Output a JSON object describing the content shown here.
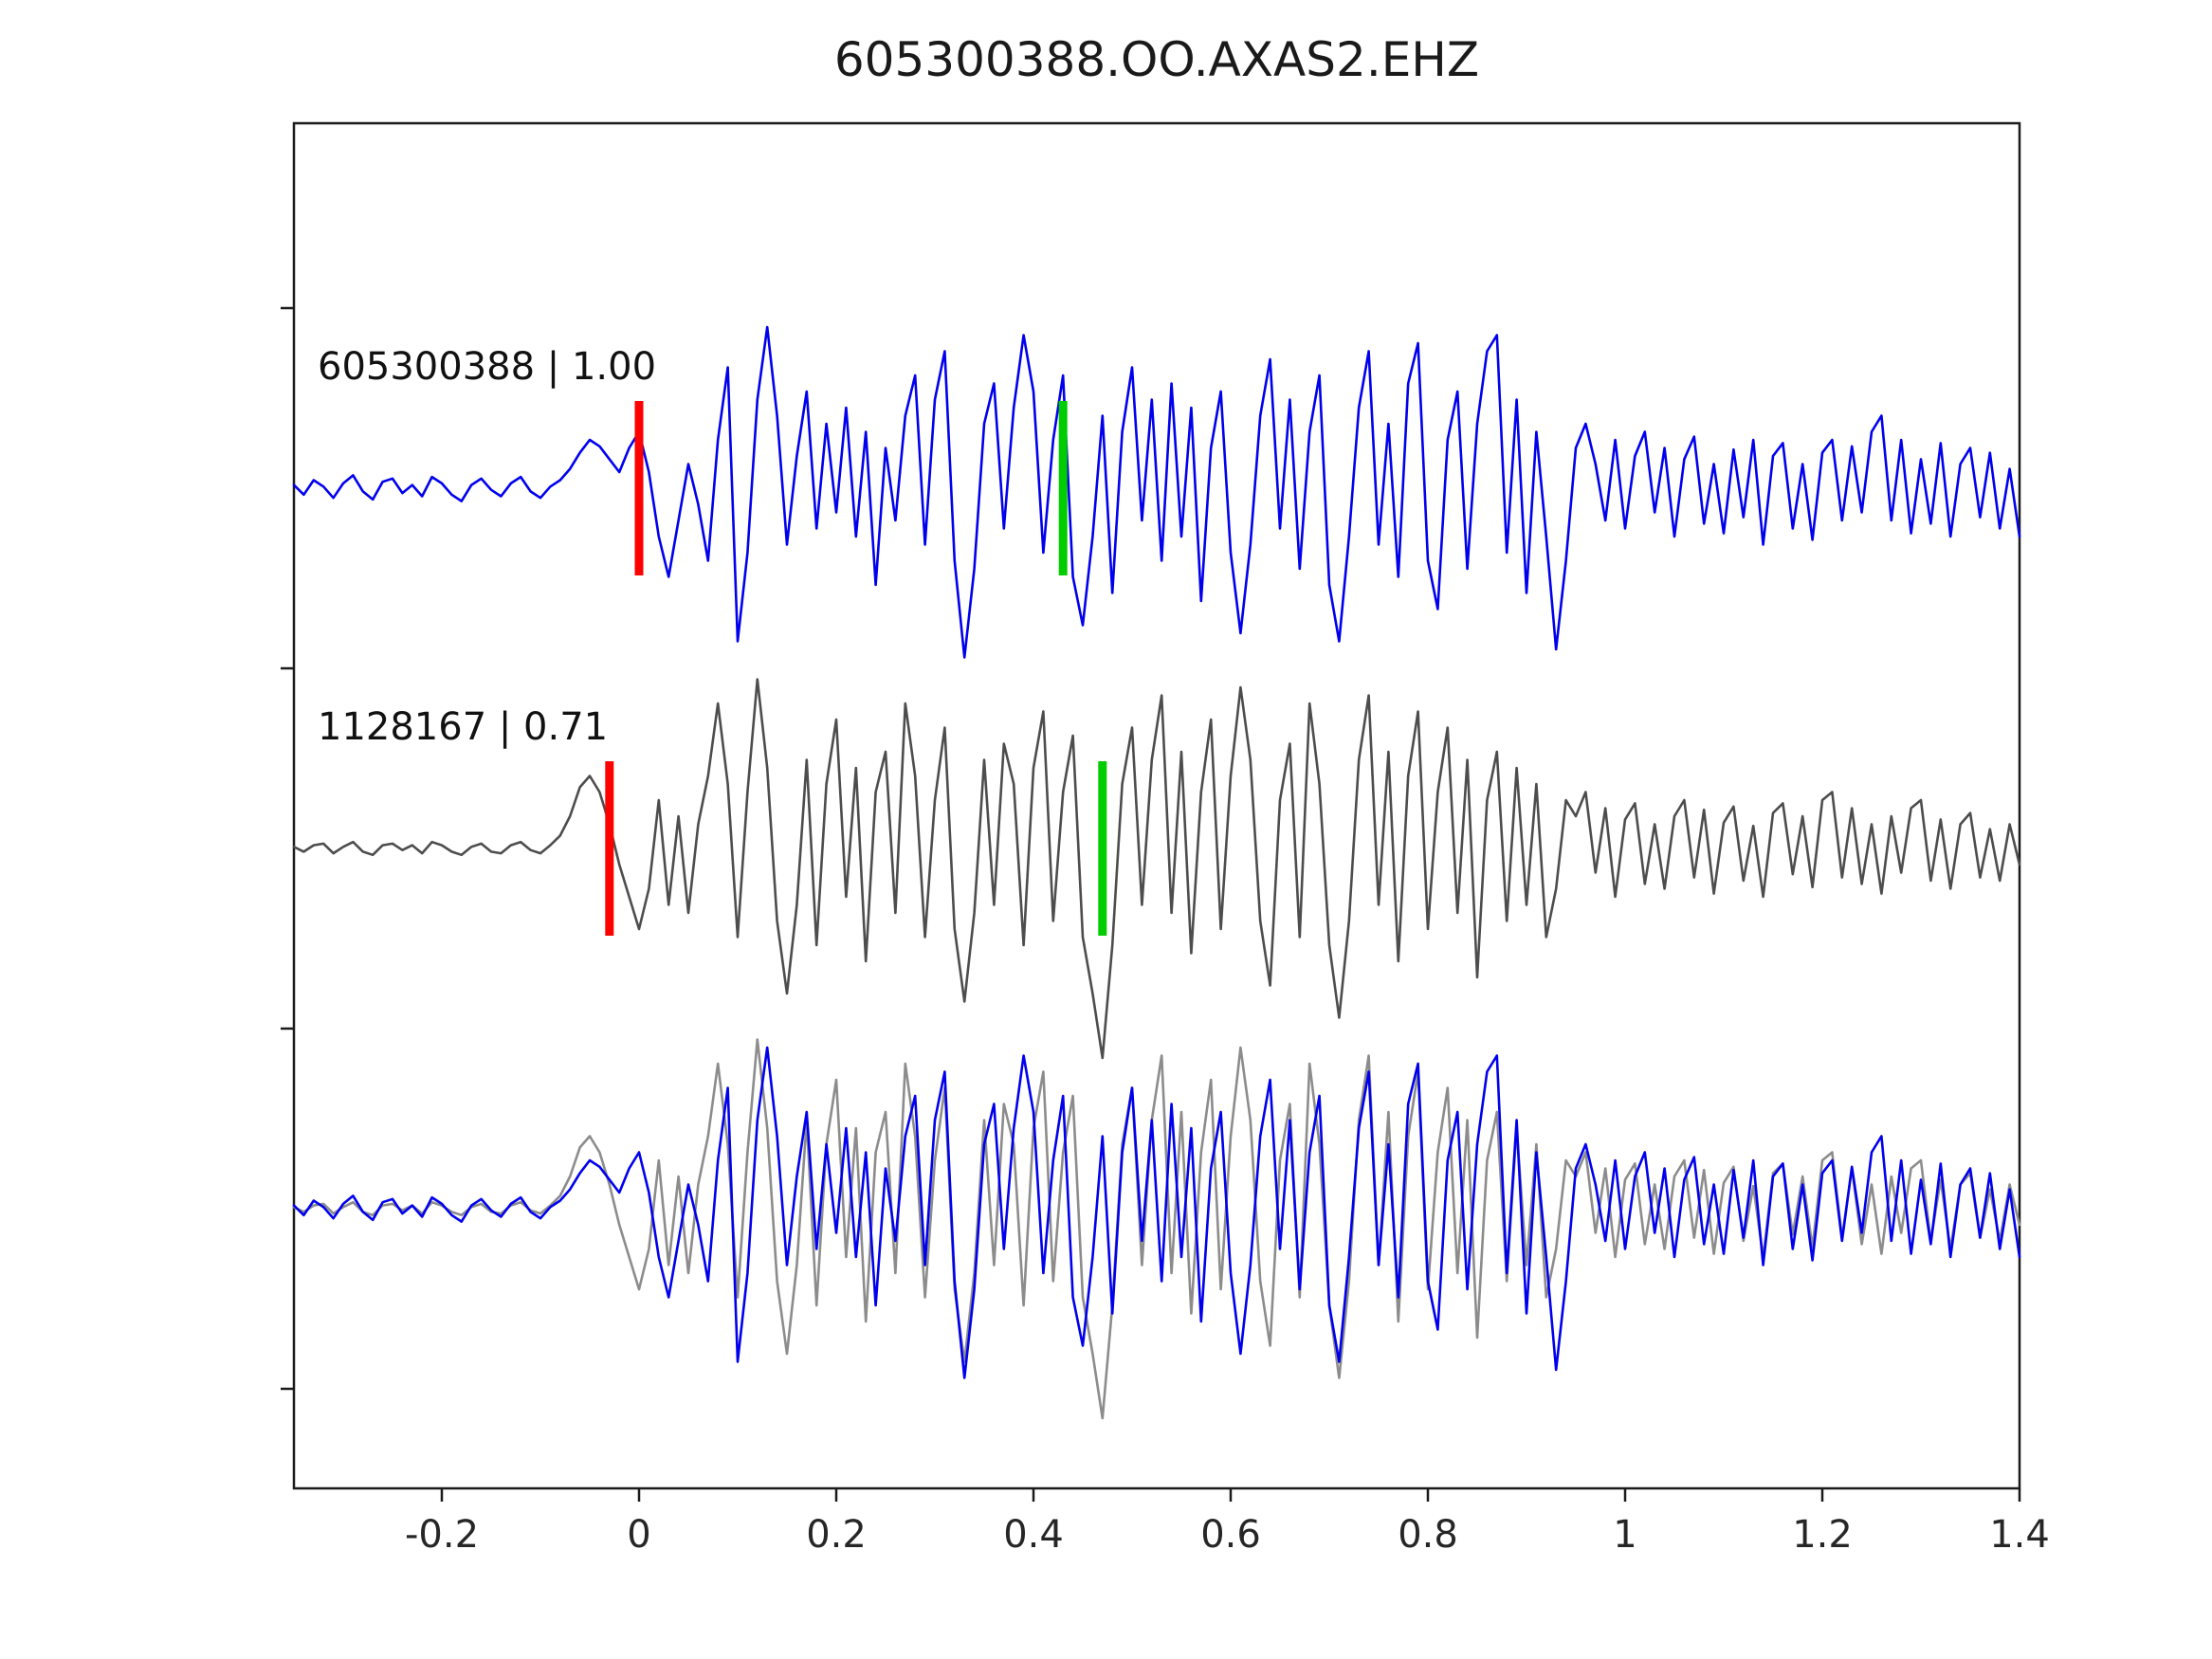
{
  "chart_data": {
    "type": "line",
    "title": "605300388.OO.AXAS2.EHZ",
    "xlabel": "",
    "ylabel": "",
    "xlim": [
      -0.35,
      1.4
    ],
    "grid": false,
    "legend": "none",
    "xticks": {
      "values": [
        -0.2,
        0,
        0.2,
        0.4,
        0.6,
        0.8,
        1.0,
        1.2,
        1.4
      ],
      "labels": [
        "-0.2",
        "0",
        "0.2",
        "0.4",
        "0.6",
        "0.8",
        "1",
        "1.2",
        "1.4"
      ]
    },
    "x_start": -0.35,
    "x_step": 0.01,
    "rows": [
      {
        "name": "template-trace",
        "label": "605300388 | 1.00",
        "picks": [
          {
            "name": "red-pick",
            "color": "#ff0000",
            "x": 0.0
          },
          {
            "name": "green-pick",
            "color": "#00cc00",
            "x": 0.43
          }
        ],
        "series": [
          {
            "key": "blue",
            "color": "#0000ee"
          }
        ]
      },
      {
        "name": "candidate-trace",
        "label": "1128167 | 0.71",
        "picks": [
          {
            "name": "red-pick",
            "color": "#ff0000",
            "x": -0.03
          },
          {
            "name": "green-pick",
            "color": "#00cc00",
            "x": 0.47
          }
        ],
        "series": [
          {
            "key": "gray",
            "color": "#4d4d4d"
          }
        ]
      },
      {
        "name": "overlay-traces",
        "label": "",
        "picks": [],
        "series": [
          {
            "key": "gray",
            "color": "#8c8c8c"
          },
          {
            "key": "blue",
            "color": "#0000ee"
          }
        ]
      }
    ],
    "series_values": {
      "blue": [
        0.02,
        -0.04,
        0.05,
        0.01,
        -0.06,
        0.03,
        0.08,
        -0.02,
        -0.07,
        0.04,
        0.06,
        -0.03,
        0.02,
        -0.05,
        0.07,
        0.03,
        -0.04,
        -0.08,
        0.02,
        0.06,
        -0.01,
        -0.05,
        0.03,
        0.07,
        -0.02,
        -0.06,
        0.01,
        0.05,
        0.12,
        0.22,
        0.3,
        0.26,
        0.18,
        0.1,
        0.25,
        0.35,
        0.1,
        -0.3,
        -0.55,
        -0.2,
        0.15,
        -0.1,
        -0.45,
        0.3,
        0.75,
        -0.95,
        -0.4,
        0.55,
        1.0,
        0.45,
        -0.35,
        0.2,
        0.6,
        -0.25,
        0.4,
        -0.15,
        0.5,
        -0.3,
        0.35,
        -0.6,
        0.25,
        -0.2,
        0.45,
        0.7,
        -0.35,
        0.55,
        0.85,
        -0.45,
        -1.05,
        -0.5,
        0.4,
        0.65,
        -0.25,
        0.5,
        0.95,
        0.6,
        -0.4,
        0.3,
        0.7,
        -0.55,
        -0.85,
        -0.3,
        0.45,
        -0.65,
        0.35,
        0.75,
        -0.2,
        0.55,
        -0.45,
        0.65,
        -0.3,
        0.5,
        -0.7,
        0.25,
        0.6,
        -0.4,
        -0.9,
        -0.35,
        0.45,
        0.8,
        -0.25,
        0.55,
        -0.5,
        0.35,
        0.7,
        -0.6,
        -0.95,
        -0.3,
        0.5,
        0.85,
        -0.35,
        0.4,
        -0.55,
        0.65,
        0.9,
        -0.45,
        -0.75,
        0.3,
        0.6,
        -0.5,
        0.4,
        0.85,
        0.95,
        -0.4,
        0.55,
        -0.65,
        0.35,
        -0.3,
        -1.0,
        -0.45,
        0.25,
        0.4,
        0.15,
        -0.2,
        0.3,
        -0.25,
        0.2,
        0.35,
        -0.15,
        0.25,
        -0.3,
        0.18,
        0.32,
        -0.22,
        0.15,
        -0.28,
        0.24,
        -0.18,
        0.3,
        -0.35,
        0.2,
        0.28,
        -0.25,
        0.15,
        -0.32,
        0.22,
        0.3,
        -0.2,
        0.26,
        -0.15,
        0.35,
        0.45,
        -0.2,
        0.3,
        -0.28,
        0.18,
        -0.22,
        0.28,
        -0.3,
        0.15,
        0.25,
        -0.18,
        0.22,
        -0.25,
        0.12,
        -0.3
      ],
      "gray": [
        0.01,
        -0.02,
        0.02,
        0.03,
        -0.03,
        0.01,
        0.04,
        -0.02,
        -0.04,
        0.02,
        0.03,
        -0.01,
        0.02,
        -0.03,
        0.04,
        0.02,
        -0.02,
        -0.04,
        0.01,
        0.03,
        -0.02,
        -0.03,
        0.02,
        0.04,
        -0.01,
        -0.03,
        0.02,
        0.08,
        0.2,
        0.38,
        0.45,
        0.35,
        0.15,
        -0.1,
        -0.3,
        -0.5,
        -0.25,
        0.3,
        -0.35,
        0.2,
        -0.4,
        0.15,
        0.45,
        0.9,
        0.4,
        -0.55,
        0.35,
        1.05,
        0.5,
        -0.45,
        -0.9,
        -0.35,
        0.55,
        -0.6,
        0.4,
        0.8,
        -0.3,
        0.5,
        -0.7,
        0.35,
        0.6,
        -0.4,
        0.9,
        0.45,
        -0.55,
        0.3,
        0.75,
        -0.5,
        -0.95,
        -0.4,
        0.55,
        -0.35,
        0.65,
        0.4,
        -0.6,
        0.5,
        0.85,
        -0.45,
        0.35,
        0.7,
        -0.55,
        -0.9,
        -1.3,
        -0.6,
        0.4,
        0.75,
        -0.35,
        0.55,
        0.95,
        -0.4,
        0.6,
        -0.65,
        0.35,
        0.8,
        -0.5,
        0.45,
        1.0,
        0.55,
        -0.45,
        -0.85,
        0.3,
        0.65,
        -0.55,
        0.9,
        0.4,
        -0.6,
        -1.05,
        -0.45,
        0.55,
        0.95,
        -0.35,
        0.6,
        -0.7,
        0.45,
        0.85,
        -0.5,
        0.35,
        0.75,
        -0.4,
        0.55,
        -0.8,
        0.3,
        0.6,
        -0.45,
        0.5,
        -0.35,
        0.4,
        -0.55,
        -0.25,
        0.3,
        0.2,
        0.35,
        -0.15,
        0.25,
        -0.3,
        0.18,
        0.28,
        -0.22,
        0.15,
        -0.25,
        0.2,
        0.3,
        -0.18,
        0.24,
        -0.28,
        0.16,
        0.26,
        -0.2,
        0.14,
        -0.3,
        0.22,
        0.28,
        -0.16,
        0.2,
        -0.24,
        0.3,
        0.35,
        -0.18,
        0.25,
        -0.22,
        0.15,
        -0.28,
        0.2,
        -0.15,
        0.25,
        0.3,
        -0.2,
        0.18,
        -0.25,
        0.15,
        0.22,
        -0.18,
        0.12,
        -0.2,
        0.15,
        -0.1
      ]
    },
    "colors": {
      "spine": "#1a1a1a",
      "tick": "#262626",
      "template_blue": "#0000ee",
      "candidate_gray": "#4d4d4d",
      "overlay_gray": "#8c8c8c",
      "pick_red": "#ff0000",
      "pick_green": "#00cc00"
    }
  }
}
